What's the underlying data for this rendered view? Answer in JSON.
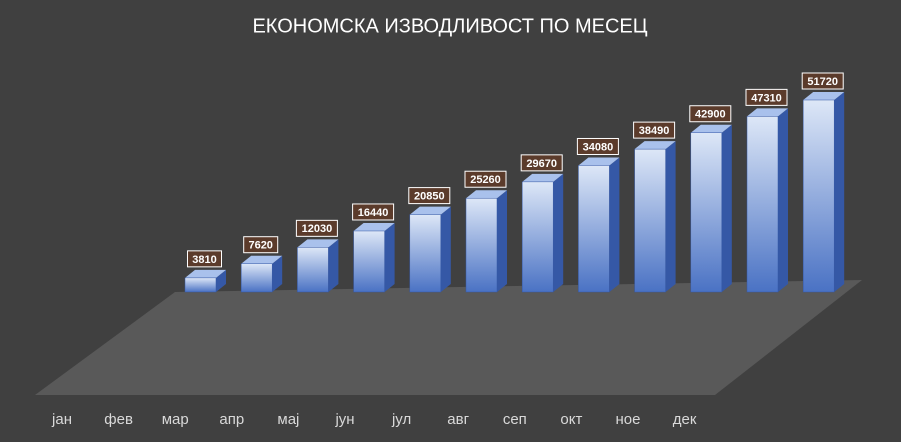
{
  "chart_data": {
    "type": "bar3d",
    "title": "ЕКОНОМСКА ИЗВОДЛИВОСТ ПО МЕСЕЦ",
    "categories": [
      "јан",
      "фев",
      "мар",
      "апр",
      "мај",
      "јун",
      "јул",
      "авг",
      "сеп",
      "окт",
      "ное",
      "дек"
    ],
    "values": [
      3810,
      7620,
      12030,
      16440,
      20850,
      25260,
      29670,
      34080,
      38490,
      42900,
      47310,
      51720
    ],
    "color": "#4a72c4",
    "label_color": "#5b3b2b"
  }
}
